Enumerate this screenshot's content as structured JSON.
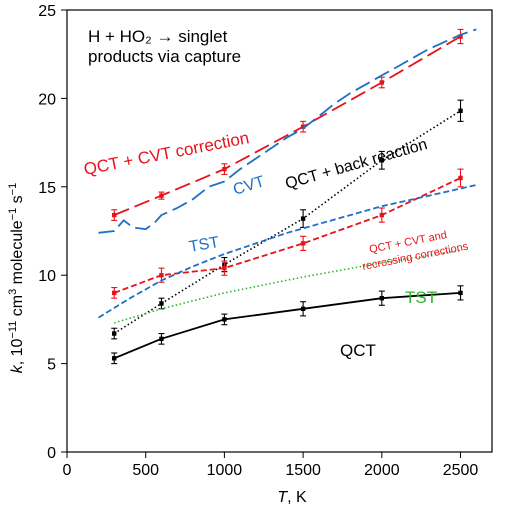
{
  "chart_data": {
    "type": "line",
    "title": "",
    "box_text": [
      "H + HO₂ → singlet",
      "products via capture"
    ],
    "xlabel": "T, K",
    "ylabel": "k, 10⁻¹¹ cm³ molecule⁻¹ s⁻¹",
    "xlim": [
      0,
      2700
    ],
    "ylim": [
      0,
      25
    ],
    "xticks": [
      0,
      500,
      1000,
      1500,
      2000,
      2500
    ],
    "yticks": [
      0,
      5,
      10,
      15,
      20,
      25
    ],
    "grid": false,
    "legend": "none",
    "series": [
      {
        "name": "QCT + CVT correction",
        "label": "QCT + CVT correction",
        "color": "#e8121b",
        "style": "longdash",
        "markers": true,
        "x": [
          300,
          600,
          1000,
          1500,
          2000,
          2500
        ],
        "y": [
          13.4,
          14.5,
          16.0,
          18.4,
          20.9,
          23.5
        ],
        "err": [
          0.3,
          0.2,
          0.3,
          0.3,
          0.3,
          0.4
        ]
      },
      {
        "name": "CVT",
        "label": "CVT",
        "color": "#1f6fc5",
        "style": "longdash",
        "markers": false,
        "x": [
          200,
          300,
          360,
          420,
          500,
          560,
          600,
          700,
          800,
          900,
          1000,
          1100,
          1200,
          1300,
          1400,
          1500,
          1600,
          1700,
          1800,
          1900,
          2000,
          2100,
          2200,
          2300,
          2400,
          2500,
          2600
        ],
        "y": [
          12.4,
          12.5,
          13.1,
          12.7,
          12.6,
          13.0,
          13.4,
          13.8,
          14.3,
          15.0,
          15.3,
          16.0,
          16.6,
          17.2,
          17.8,
          18.3,
          19.0,
          19.7,
          20.3,
          20.8,
          21.3,
          21.8,
          22.3,
          22.8,
          23.2,
          23.6,
          23.9
        ]
      },
      {
        "name": "QCT + back reaction",
        "label": "QCT + back reaction",
        "color": "#000000",
        "style": "dotted",
        "markers": true,
        "x": [
          300,
          600,
          1000,
          1500,
          2000,
          2500
        ],
        "y": [
          6.7,
          8.4,
          10.6,
          13.2,
          16.5,
          19.3
        ],
        "err": [
          0.3,
          0.3,
          0.4,
          0.5,
          0.5,
          0.6
        ]
      },
      {
        "name": "QCT + CVT and recrossing corrections",
        "label": "QCT + CVT and recrossing corrections",
        "color": "#e8121b",
        "style": "dashed",
        "markers": true,
        "x": [
          300,
          600,
          1000,
          1500,
          2000,
          2500
        ],
        "y": [
          9.0,
          10.0,
          10.4,
          11.8,
          13.4,
          15.5
        ],
        "err": [
          0.3,
          0.4,
          0.4,
          0.4,
          0.4,
          0.5
        ]
      },
      {
        "name": "TST (blue)",
        "label": "TST",
        "color": "#1f6fc5",
        "style": "dashed",
        "markers": false,
        "x": [
          200,
          400,
          600,
          800,
          1000,
          1200,
          1400,
          1600,
          1800,
          2000,
          2200,
          2400,
          2600
        ],
        "y": [
          7.6,
          8.7,
          9.7,
          10.5,
          11.2,
          11.8,
          12.4,
          12.9,
          13.4,
          13.9,
          14.3,
          14.7,
          15.1
        ]
      },
      {
        "name": "TST (green)",
        "label": "TST",
        "color": "#2db52d",
        "style": "dotted",
        "markers": false,
        "x": [
          300,
          600,
          1000,
          1500,
          2000,
          2500
        ],
        "y": [
          7.3,
          8.1,
          9.0,
          9.9,
          10.7,
          11.4
        ]
      },
      {
        "name": "QCT",
        "label": "QCT",
        "color": "#000000",
        "style": "solid",
        "markers": true,
        "x": [
          300,
          600,
          1000,
          1500,
          2000,
          2500
        ],
        "y": [
          5.3,
          6.4,
          7.5,
          8.1,
          8.7,
          9.0
        ],
        "err": [
          0.3,
          0.3,
          0.3,
          0.4,
          0.4,
          0.4
        ]
      }
    ],
    "annotations": [
      {
        "text": "QCT + CVT correction",
        "color": "#e8121b"
      },
      {
        "text": "CVT",
        "color": "#1f6fc5"
      },
      {
        "text": "QCT + back reaction",
        "color": "#000000"
      },
      {
        "text": "TST",
        "color": "#1f6fc5"
      },
      {
        "text": "QCT + CVT and",
        "color": "#e8121b"
      },
      {
        "text": "recrossing corrections",
        "color": "#e8121b"
      },
      {
        "text": "TST",
        "color": "#2db52d"
      },
      {
        "text": "QCT",
        "color": "#000000"
      }
    ]
  }
}
